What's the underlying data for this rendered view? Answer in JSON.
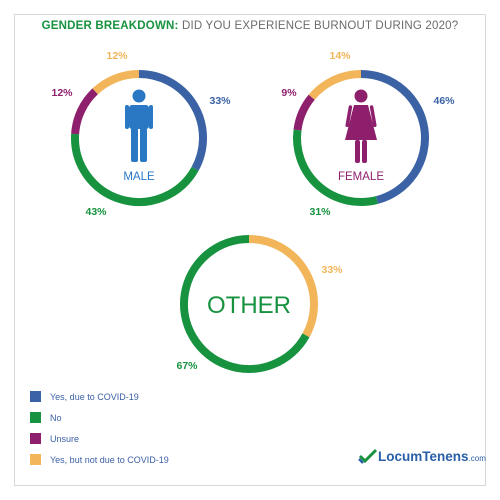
{
  "title": {
    "part1": "GENDER BREAKDOWN:",
    "part2": "DID YOU EXPERIENCE BURNOUT DURING 2020?"
  },
  "colors": {
    "yes_covid": "#3a62a4",
    "no": "#17923f",
    "unsure": "#8e1f6d",
    "yes_not_covid": "#f2b559",
    "label_green": "#17923f",
    "male_icon": "#2a78c4",
    "female_icon": "#8e1f6d"
  },
  "legend": [
    {
      "label": "Yes, due to COVID-19",
      "color_key": "yes_covid"
    },
    {
      "label": "No",
      "color_key": "no"
    },
    {
      "label": "Unsure",
      "color_key": "unsure"
    },
    {
      "label": "Yes, but not due to COVID-19",
      "color_key": "yes_not_covid"
    }
  ],
  "logo": {
    "name": "LocumTenens",
    "suffix": ".com",
    "icon": "checkmark-logo-icon"
  },
  "chart_data": [
    {
      "type": "pie",
      "variant": "donut",
      "center_label": "MALE",
      "icon": "male-person-icon",
      "slices": [
        {
          "category": "Yes, due to COVID-19",
          "value": 33,
          "label": "33%"
        },
        {
          "category": "No",
          "value": 43,
          "label": "43%"
        },
        {
          "category": "Unsure",
          "value": 12,
          "label": "12%"
        },
        {
          "category": "Yes, but not due to COVID-19",
          "value": 12,
          "label": "12%"
        }
      ]
    },
    {
      "type": "pie",
      "variant": "donut",
      "center_label": "FEMALE",
      "icon": "female-person-icon",
      "slices": [
        {
          "category": "Yes, due to COVID-19",
          "value": 46,
          "label": "46%"
        },
        {
          "category": "No",
          "value": 31,
          "label": "31%"
        },
        {
          "category": "Unsure",
          "value": 9,
          "label": "9%"
        },
        {
          "category": "Yes, but not due to COVID-19",
          "value": 14,
          "label": "14%"
        }
      ]
    },
    {
      "type": "pie",
      "variant": "donut",
      "center_label": "OTHER",
      "slices": [
        {
          "category": "Yes, but not due to COVID-19",
          "value": 33,
          "label": "33%"
        },
        {
          "category": "No",
          "value": 67,
          "label": "67%"
        }
      ]
    }
  ]
}
